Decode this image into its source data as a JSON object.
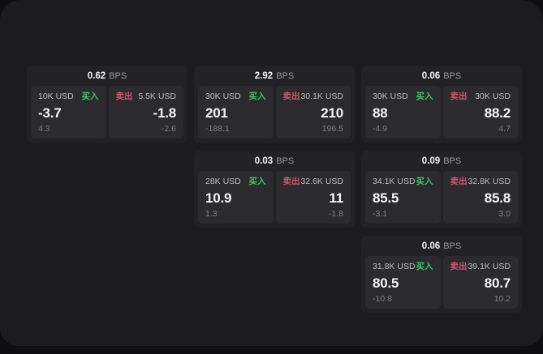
{
  "labels": {
    "bps_unit": "BPS",
    "buy": "买入",
    "sell": "卖出"
  },
  "colors": {
    "outer_background": "#0e0e10",
    "panel_background": "#1c1c1e",
    "card_background": "#222225",
    "tile_background": "#2b2b2e",
    "buy_green": "#3ec46d",
    "sell_red": "#cf5570",
    "text_primary": "#f4f4f6",
    "text_secondary": "#bdbdc2",
    "text_muted": "#7e7e85"
  },
  "cards": [
    {
      "bps": "0.62",
      "buy": {
        "amount": "10K USD",
        "value": "-3.7",
        "change": "4.3"
      },
      "sell": {
        "amount": "5.5K USD",
        "value": "-1.8",
        "change": "-2.6"
      }
    },
    {
      "bps": "2.92",
      "buy": {
        "amount": "30K USD",
        "value": "201",
        "change": "-188.1"
      },
      "sell": {
        "amount": "30.1K USD",
        "value": "210",
        "change": "196.5"
      }
    },
    {
      "bps": "0.06",
      "buy": {
        "amount": "30K USD",
        "value": "88",
        "change": "-4.9"
      },
      "sell": {
        "amount": "30K USD",
        "value": "88.2",
        "change": "4.7"
      }
    },
    {
      "bps": "0.03",
      "buy": {
        "amount": "28K USD",
        "value": "10.9",
        "change": "1.3"
      },
      "sell": {
        "amount": "32.6K USD",
        "value": "11",
        "change": "-1.8"
      }
    },
    {
      "bps": "0.09",
      "buy": {
        "amount": "34.1K USD",
        "value": "85.5",
        "change": "-3.1"
      },
      "sell": {
        "amount": "32.8K USD",
        "value": "85.8",
        "change": "3.0"
      }
    },
    {
      "bps": "0.06",
      "buy": {
        "amount": "31.8K USD",
        "value": "80.5",
        "change": "-10.8"
      },
      "sell": {
        "amount": "39.1K USD",
        "value": "80.7",
        "change": "10.2"
      }
    }
  ]
}
